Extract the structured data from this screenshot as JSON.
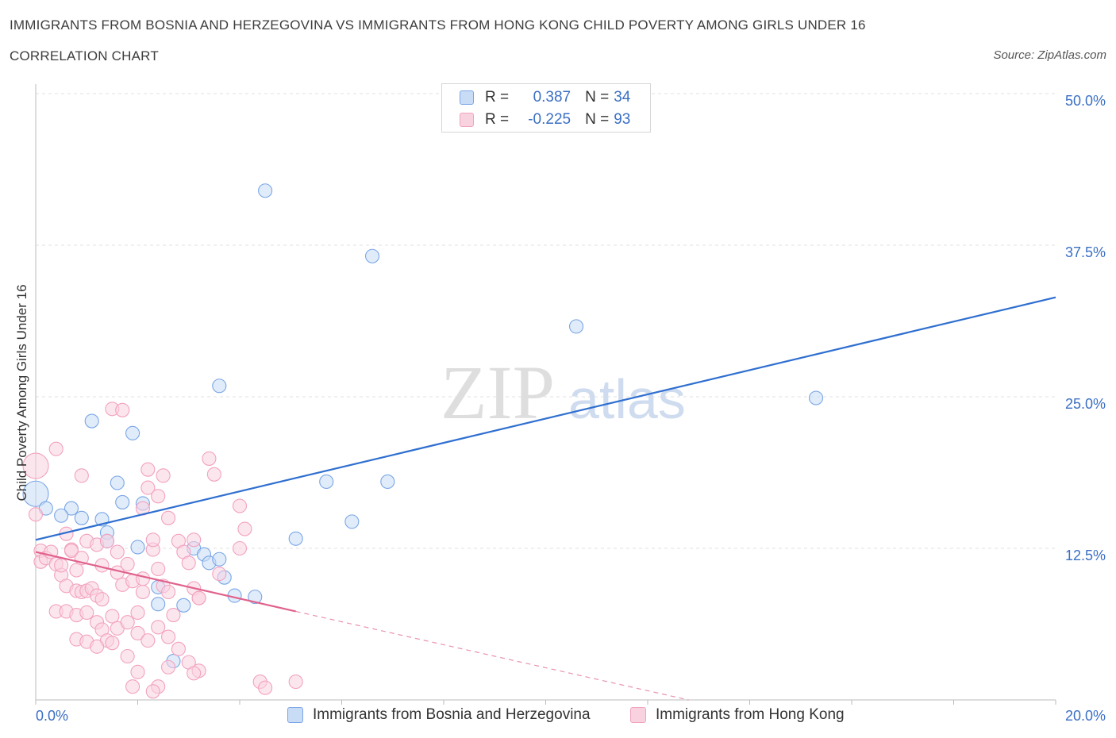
{
  "chart_data": {
    "type": "scatter",
    "title": "IMMIGRANTS FROM BOSNIA AND HERZEGOVINA VS IMMIGRANTS FROM HONG KONG CHILD POVERTY AMONG GIRLS UNDER 16",
    "subtitle": "CORRELATION CHART",
    "source": "Source: ZipAtlas.com",
    "watermark": {
      "zip": "ZIP",
      "atlas": "atlas"
    },
    "xlabel": "",
    "ylabel": "Child Poverty Among Girls Under 16",
    "xlim": [
      0,
      20
    ],
    "ylim": [
      0,
      50
    ],
    "x_tick_labels": {
      "min": "0.0%",
      "max": "20.0%"
    },
    "y_ticks": [
      {
        "value": 50,
        "label": "50.0%"
      },
      {
        "value": 37.5,
        "label": "37.5%"
      },
      {
        "value": 25,
        "label": "25.0%"
      },
      {
        "value": 12.5,
        "label": "12.5%"
      }
    ],
    "legend": {
      "r_label": "R =",
      "n_label": "N =",
      "entries": [
        {
          "r": "0.387",
          "n": "34"
        },
        {
          "r": "-0.225",
          "n": "93"
        }
      ]
    },
    "series": [
      {
        "name": "Immigrants from Bosnia and Herzegovina",
        "color": "#7aa6e6",
        "fill": "#c9dcf6",
        "line_color": "#2f6fd0",
        "trend": {
          "x0": 0,
          "y0": 13.2,
          "x1": 20,
          "y1": 33.2
        },
        "points": [
          [
            4.5,
            42.0
          ],
          [
            6.6,
            36.6
          ],
          [
            10.6,
            30.8
          ],
          [
            15.3,
            24.9
          ],
          [
            3.6,
            25.9
          ],
          [
            1.1,
            23.0
          ],
          [
            1.9,
            22.0
          ],
          [
            0.0,
            17.0
          ],
          [
            0.2,
            15.8
          ],
          [
            0.7,
            15.8
          ],
          [
            0.5,
            15.2
          ],
          [
            0.9,
            15.0
          ],
          [
            1.3,
            14.9
          ],
          [
            1.6,
            17.9
          ],
          [
            1.7,
            16.3
          ],
          [
            2.1,
            16.2
          ],
          [
            5.7,
            18.0
          ],
          [
            6.9,
            18.0
          ],
          [
            6.2,
            14.7
          ],
          [
            1.4,
            13.8
          ],
          [
            1.4,
            13.1
          ],
          [
            2.0,
            12.6
          ],
          [
            3.1,
            12.5
          ],
          [
            3.3,
            12.0
          ],
          [
            5.1,
            13.3
          ],
          [
            3.4,
            11.3
          ],
          [
            3.7,
            10.1
          ],
          [
            3.6,
            11.6
          ],
          [
            2.4,
            9.3
          ],
          [
            2.4,
            7.9
          ],
          [
            2.9,
            7.8
          ],
          [
            3.9,
            8.6
          ],
          [
            4.3,
            8.5
          ],
          [
            2.7,
            3.2
          ]
        ]
      },
      {
        "name": "Immigrants from Hong Kong",
        "color": "#f2a2bf",
        "fill": "#f9d2e0",
        "line_color": "#e0628c",
        "trend": {
          "x0": 0,
          "y0": 12.2,
          "x1": 5.1,
          "y1": 7.3,
          "dash_to_x": 12.8,
          "dash_to_y": 0
        },
        "points": [
          [
            0.0,
            19.3
          ],
          [
            0.0,
            15.3
          ],
          [
            0.4,
            20.7
          ],
          [
            1.5,
            24.0
          ],
          [
            1.7,
            23.9
          ],
          [
            2.2,
            19.0
          ],
          [
            2.5,
            18.5
          ],
          [
            3.4,
            19.9
          ],
          [
            3.5,
            18.6
          ],
          [
            0.9,
            18.5
          ],
          [
            2.2,
            17.5
          ],
          [
            2.4,
            16.8
          ],
          [
            2.1,
            15.8
          ],
          [
            4.0,
            16.0
          ],
          [
            0.1,
            12.3
          ],
          [
            0.1,
            11.4
          ],
          [
            0.2,
            11.7
          ],
          [
            0.3,
            12.2
          ],
          [
            0.4,
            11.2
          ],
          [
            0.5,
            10.3
          ],
          [
            0.5,
            11.1
          ],
          [
            0.6,
            9.4
          ],
          [
            0.6,
            13.7
          ],
          [
            0.7,
            12.4
          ],
          [
            0.7,
            12.3
          ],
          [
            0.8,
            10.7
          ],
          [
            0.8,
            9.0
          ],
          [
            0.9,
            8.9
          ],
          [
            0.9,
            11.7
          ],
          [
            1.0,
            9.0
          ],
          [
            1.0,
            13.1
          ],
          [
            1.1,
            9.2
          ],
          [
            1.2,
            8.6
          ],
          [
            1.2,
            12.8
          ],
          [
            1.3,
            8.3
          ],
          [
            1.3,
            11.1
          ],
          [
            1.4,
            13.1
          ],
          [
            1.5,
            6.9
          ],
          [
            1.6,
            12.2
          ],
          [
            1.6,
            10.5
          ],
          [
            1.7,
            9.5
          ],
          [
            1.8,
            11.2
          ],
          [
            1.9,
            9.8
          ],
          [
            2.0,
            7.2
          ],
          [
            2.1,
            10.0
          ],
          [
            2.3,
            12.4
          ],
          [
            2.4,
            10.8
          ],
          [
            2.5,
            9.4
          ],
          [
            2.6,
            8.9
          ],
          [
            2.7,
            7.0
          ],
          [
            2.8,
            13.1
          ],
          [
            2.9,
            12.2
          ],
          [
            3.0,
            11.3
          ],
          [
            3.1,
            9.2
          ],
          [
            3.2,
            8.4
          ],
          [
            0.4,
            7.3
          ],
          [
            0.6,
            7.3
          ],
          [
            0.8,
            7.0
          ],
          [
            1.0,
            7.2
          ],
          [
            1.2,
            6.4
          ],
          [
            1.3,
            5.8
          ],
          [
            1.4,
            4.9
          ],
          [
            1.6,
            5.9
          ],
          [
            1.8,
            6.4
          ],
          [
            2.0,
            5.5
          ],
          [
            2.2,
            4.9
          ],
          [
            2.4,
            6.0
          ],
          [
            2.6,
            5.2
          ],
          [
            2.8,
            4.2
          ],
          [
            3.0,
            3.1
          ],
          [
            3.2,
            2.4
          ],
          [
            0.8,
            5.0
          ],
          [
            1.0,
            4.8
          ],
          [
            1.2,
            4.4
          ],
          [
            1.5,
            4.7
          ],
          [
            1.8,
            3.6
          ],
          [
            2.0,
            2.3
          ],
          [
            2.4,
            1.1
          ],
          [
            2.6,
            2.7
          ],
          [
            3.1,
            2.2
          ],
          [
            4.4,
            1.5
          ],
          [
            4.5,
            1.0
          ],
          [
            5.1,
            1.5
          ],
          [
            1.9,
            1.1
          ],
          [
            2.3,
            0.7
          ],
          [
            4.1,
            14.1
          ],
          [
            3.1,
            13.2
          ],
          [
            4.0,
            12.5
          ],
          [
            3.6,
            10.4
          ],
          [
            3.2,
            8.4
          ],
          [
            2.1,
            8.9
          ],
          [
            2.3,
            13.2
          ],
          [
            2.6,
            15.0
          ]
        ]
      }
    ]
  }
}
